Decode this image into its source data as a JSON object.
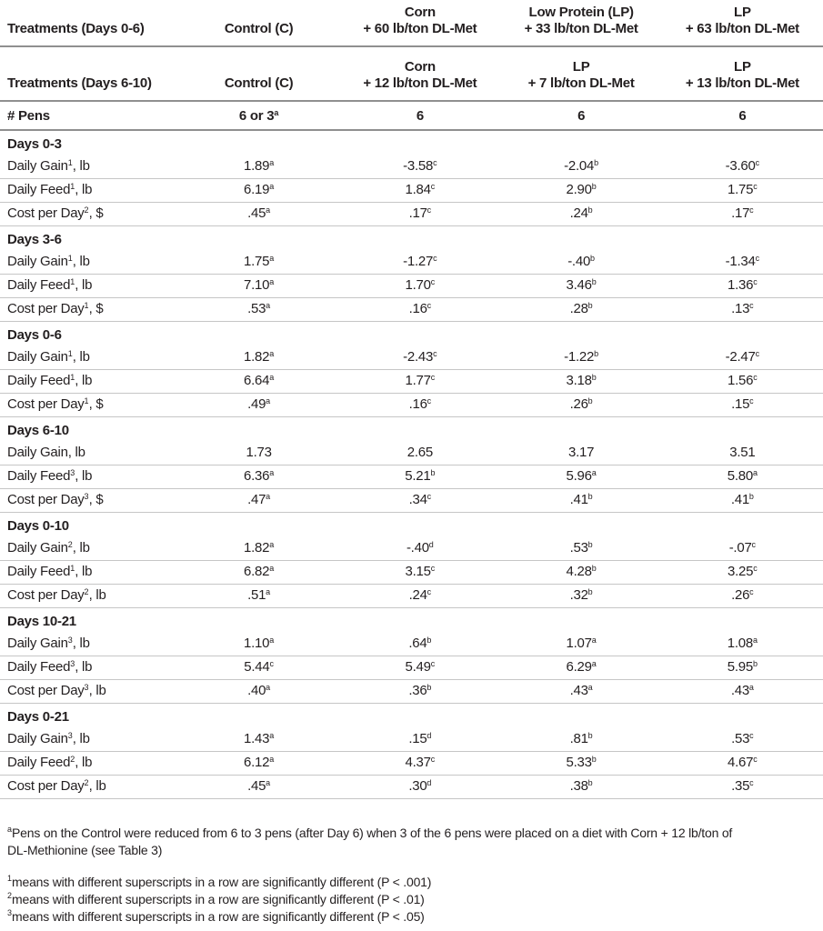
{
  "colors": {
    "background": "#ffffff",
    "text": "#231f20",
    "row_line": "#c6c6c6",
    "header_line": "#8f8f8f"
  },
  "table": {
    "header_rows": [
      {
        "label": "Treatments (Days 0-6)",
        "columns": [
          {
            "line1": "",
            "line2": "Control (C)"
          },
          {
            "line1": "Corn",
            "line2": "+ 60 lb/ton DL-Met"
          },
          {
            "line1": "Low Protein (LP)",
            "line2": "+ 33 lb/ton DL-Met"
          },
          {
            "line1": "LP",
            "line2": "+ 63 lb/ton DL-Met"
          }
        ]
      },
      {
        "label": "Treatments (Days 6-10)",
        "columns": [
          {
            "line1": "",
            "line2": "Control (C)"
          },
          {
            "line1": "Corn",
            "line2": "+ 12 lb/ton DL-Met"
          },
          {
            "line1": "LP",
            "line2": "+ 7 lb/ton DL-Met"
          },
          {
            "line1": "LP",
            "line2": "+ 13 lb/ton DL-Met"
          }
        ]
      }
    ],
    "pens_row": {
      "label": "# Pens",
      "values": [
        {
          "v": "6 or 3",
          "s": "a"
        },
        {
          "v": "6",
          "s": ""
        },
        {
          "v": "6",
          "s": ""
        },
        {
          "v": "6",
          "s": ""
        }
      ]
    },
    "sections": [
      {
        "title": "Days 0-3",
        "rows": [
          {
            "label": "Daily Gain",
            "label_sup": "1",
            "unit": ", lb",
            "values": [
              {
                "v": "1.89",
                "s": "a"
              },
              {
                "v": "-3.58",
                "s": "c"
              },
              {
                "v": "-2.04",
                "s": "b"
              },
              {
                "v": "-3.60",
                "s": "c"
              }
            ]
          },
          {
            "label": "Daily Feed",
            "label_sup": "1",
            "unit": ", lb",
            "values": [
              {
                "v": "6.19",
                "s": "a"
              },
              {
                "v": "1.84",
                "s": "c"
              },
              {
                "v": "2.90",
                "s": "b"
              },
              {
                "v": "1.75",
                "s": "c"
              }
            ]
          },
          {
            "label": "Cost per Day",
            "label_sup": "2",
            "unit": ", $",
            "values": [
              {
                "v": ".45",
                "s": "a"
              },
              {
                "v": ".17",
                "s": "c"
              },
              {
                "v": ".24",
                "s": "b"
              },
              {
                "v": ".17",
                "s": "c"
              }
            ]
          }
        ]
      },
      {
        "title": "Days 3-6",
        "rows": [
          {
            "label": "Daily Gain",
            "label_sup": "1",
            "unit": ", lb",
            "values": [
              {
                "v": "1.75",
                "s": "a"
              },
              {
                "v": "-1.27",
                "s": "c"
              },
              {
                "v": "-.40",
                "s": "b"
              },
              {
                "v": "-1.34",
                "s": "c"
              }
            ]
          },
          {
            "label": "Daily Feed",
            "label_sup": "1",
            "unit": ", lb",
            "values": [
              {
                "v": "7.10",
                "s": "a"
              },
              {
                "v": "1.70",
                "s": "c"
              },
              {
                "v": "3.46",
                "s": "b"
              },
              {
                "v": "1.36",
                "s": "c"
              }
            ]
          },
          {
            "label": "Cost per Day",
            "label_sup": "1",
            "unit": ", $",
            "values": [
              {
                "v": ".53",
                "s": "a"
              },
              {
                "v": ".16",
                "s": "c"
              },
              {
                "v": ".28",
                "s": "b"
              },
              {
                "v": ".13",
                "s": "c"
              }
            ]
          }
        ]
      },
      {
        "title": "Days 0-6",
        "rows": [
          {
            "label": "Daily Gain",
            "label_sup": "1",
            "unit": ", lb",
            "values": [
              {
                "v": "1.82",
                "s": "a"
              },
              {
                "v": "-2.43",
                "s": "c"
              },
              {
                "v": "-1.22",
                "s": "b"
              },
              {
                "v": "-2.47",
                "s": "c"
              }
            ]
          },
          {
            "label": "Daily Feed",
            "label_sup": "1",
            "unit": ", lb",
            "values": [
              {
                "v": "6.64",
                "s": "a"
              },
              {
                "v": "1.77",
                "s": "c"
              },
              {
                "v": "3.18",
                "s": "b"
              },
              {
                "v": "1.56",
                "s": "c"
              }
            ]
          },
          {
            "label": "Cost per Day",
            "label_sup": "1",
            "unit": ", $",
            "values": [
              {
                "v": ".49",
                "s": "a"
              },
              {
                "v": ".16",
                "s": "c"
              },
              {
                "v": ".26",
                "s": "b"
              },
              {
                "v": ".15",
                "s": "c"
              }
            ]
          }
        ]
      },
      {
        "title": "Days 6-10",
        "rows": [
          {
            "label": "Daily Gain",
            "label_sup": "",
            "unit": ", lb",
            "values": [
              {
                "v": "1.73",
                "s": ""
              },
              {
                "v": "2.65",
                "s": ""
              },
              {
                "v": "3.17",
                "s": ""
              },
              {
                "v": "3.51",
                "s": ""
              }
            ]
          },
          {
            "label": "Daily Feed",
            "label_sup": "3",
            "unit": ", lb",
            "values": [
              {
                "v": "6.36",
                "s": "a"
              },
              {
                "v": "5.21",
                "s": "b"
              },
              {
                "v": "5.96",
                "s": "a"
              },
              {
                "v": "5.80",
                "s": "a"
              }
            ]
          },
          {
            "label": "Cost per Day",
            "label_sup": "3",
            "unit": ", $",
            "values": [
              {
                "v": ".47",
                "s": "a"
              },
              {
                "v": ".34",
                "s": "c"
              },
              {
                "v": ".41",
                "s": "b"
              },
              {
                "v": ".41",
                "s": "b"
              }
            ]
          }
        ]
      },
      {
        "title": "Days 0-10",
        "rows": [
          {
            "label": "Daily Gain",
            "label_sup": "2",
            "unit": ", lb",
            "values": [
              {
                "v": "1.82",
                "s": "a"
              },
              {
                "v": "-.40",
                "s": "d"
              },
              {
                "v": ".53",
                "s": "b"
              },
              {
                "v": "-.07",
                "s": "c"
              }
            ]
          },
          {
            "label": "Daily Feed",
            "label_sup": "1",
            "unit": ", lb",
            "values": [
              {
                "v": "6.82",
                "s": "a"
              },
              {
                "v": "3.15",
                "s": "c"
              },
              {
                "v": "4.28",
                "s": "b"
              },
              {
                "v": "3.25",
                "s": "c"
              }
            ]
          },
          {
            "label": "Cost per Day",
            "label_sup": "2",
            "unit": ", lb",
            "values": [
              {
                "v": ".51",
                "s": "a"
              },
              {
                "v": ".24",
                "s": "c"
              },
              {
                "v": ".32",
                "s": "b"
              },
              {
                "v": ".26",
                "s": "c"
              }
            ]
          }
        ]
      },
      {
        "title": "Days 10-21",
        "rows": [
          {
            "label": "Daily Gain",
            "label_sup": "3",
            "unit": ", lb",
            "values": [
              {
                "v": "1.10",
                "s": "a"
              },
              {
                "v": ".64",
                "s": "b"
              },
              {
                "v": "1.07",
                "s": "a"
              },
              {
                "v": "1.08",
                "s": "a"
              }
            ]
          },
          {
            "label": "Daily Feed",
            "label_sup": "3",
            "unit": ", lb",
            "values": [
              {
                "v": "5.44",
                "s": "c"
              },
              {
                "v": "5.49",
                "s": "c"
              },
              {
                "v": "6.29",
                "s": "a"
              },
              {
                "v": "5.95",
                "s": "b"
              }
            ]
          },
          {
            "label": "Cost per Day",
            "label_sup": "3",
            "unit": ", lb",
            "values": [
              {
                "v": ".40",
                "s": "a"
              },
              {
                "v": ".36",
                "s": "b"
              },
              {
                "v": ".43",
                "s": "a"
              },
              {
                "v": ".43",
                "s": "a"
              }
            ]
          }
        ]
      },
      {
        "title": "Days 0-21",
        "rows": [
          {
            "label": "Daily Gain",
            "label_sup": "3",
            "unit": ", lb",
            "values": [
              {
                "v": "1.43",
                "s": "a"
              },
              {
                "v": ".15",
                "s": "d"
              },
              {
                "v": ".81",
                "s": "b"
              },
              {
                "v": ".53",
                "s": "c"
              }
            ]
          },
          {
            "label": "Daily Feed",
            "label_sup": "2",
            "unit": ", lb",
            "values": [
              {
                "v": "6.12",
                "s": "a"
              },
              {
                "v": "4.37",
                "s": "c"
              },
              {
                "v": "5.33",
                "s": "b"
              },
              {
                "v": "4.67",
                "s": "c"
              }
            ]
          },
          {
            "label": "Cost per Day",
            "label_sup": "2",
            "unit": ", lb",
            "values": [
              {
                "v": ".45",
                "s": "a"
              },
              {
                "v": ".30",
                "s": "d"
              },
              {
                "v": ".38",
                "s": "b"
              },
              {
                "v": ".35",
                "s": "c"
              }
            ]
          }
        ]
      }
    ]
  },
  "footnotes": {
    "pens": {
      "sup": "a",
      "text": "Pens on the Control were reduced from 6 to 3 pens (after Day 6) when 3 of the 6 pens were placed on a diet with Corn + 12 lb/ton of DL-Methionine (see Table 3)"
    },
    "significance": [
      {
        "sup": "1",
        "text": "means with different superscripts in a row are significantly different (P < .001)"
      },
      {
        "sup": "2",
        "text": "means with different superscripts in a row are significantly different (P < .01)"
      },
      {
        "sup": "3",
        "text": "means with different superscripts in a row are significantly different (P < .05)"
      }
    ]
  }
}
